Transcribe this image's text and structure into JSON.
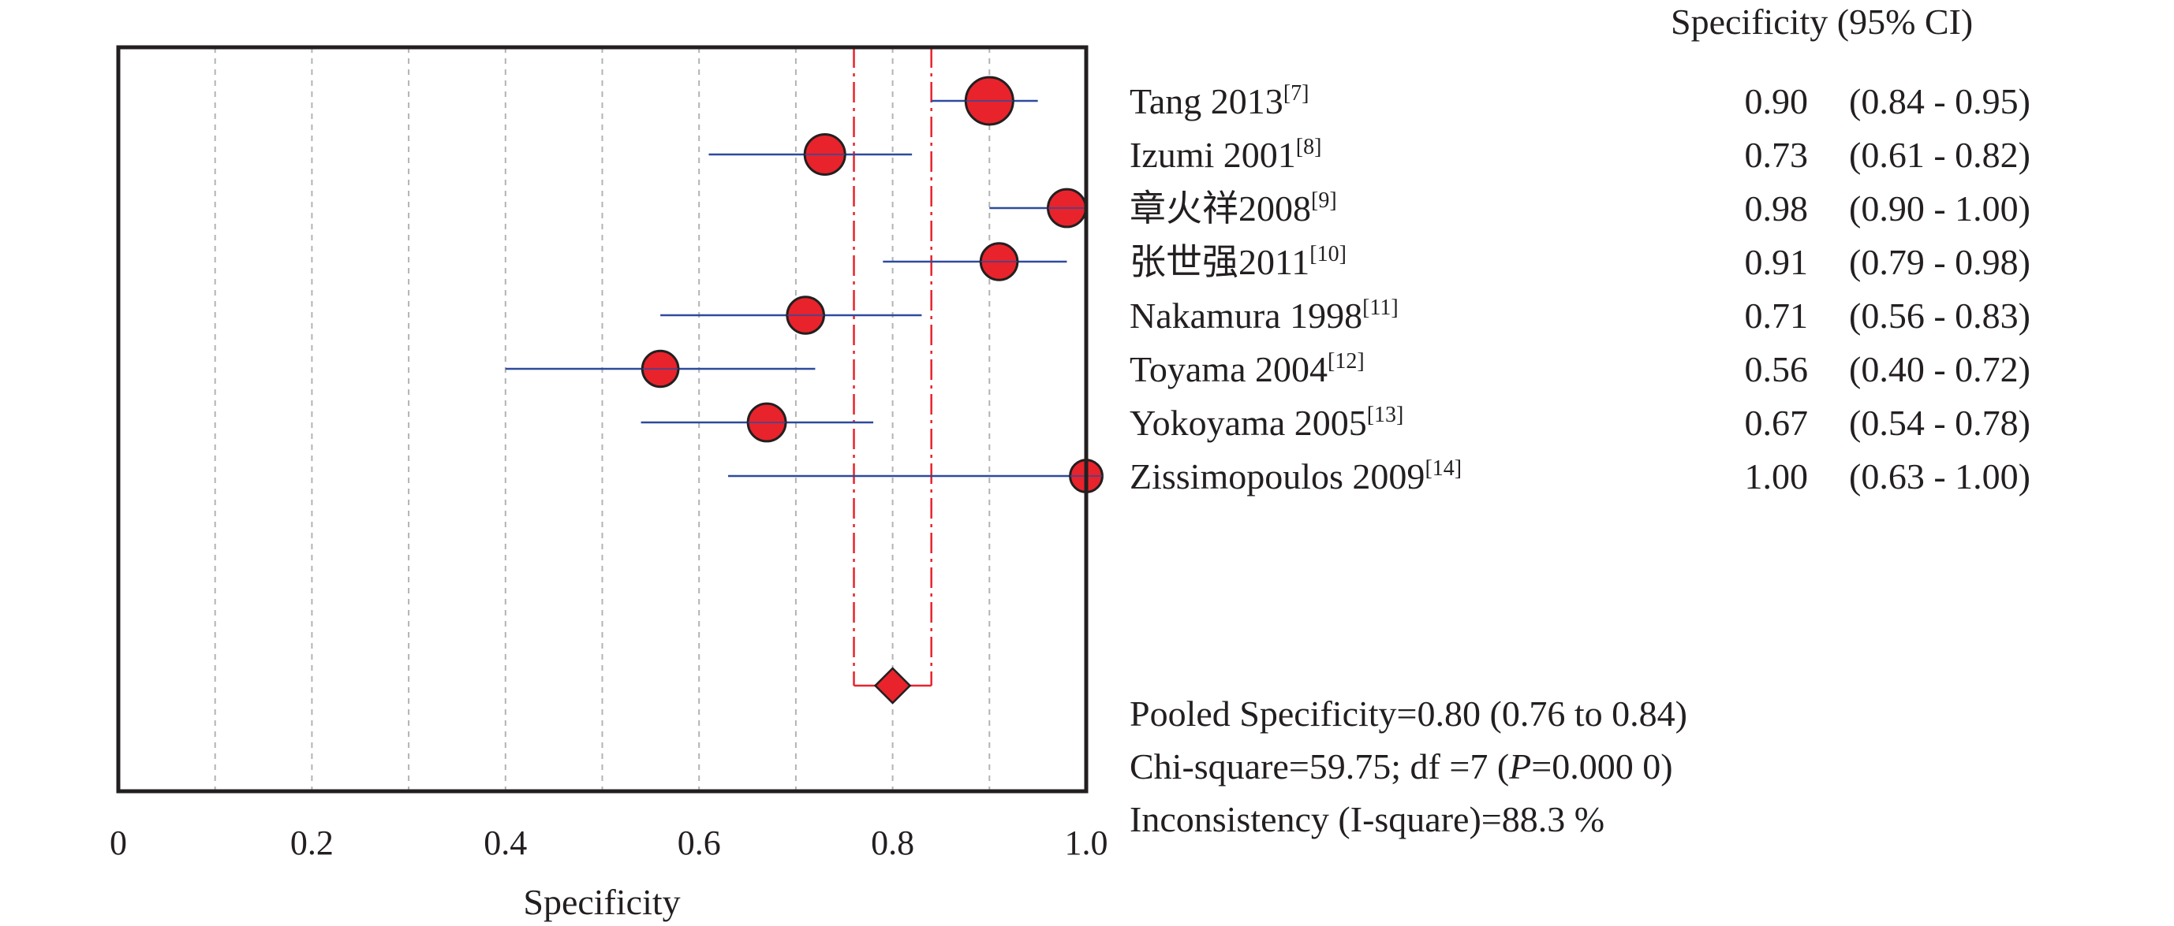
{
  "chart_data": {
    "type": "forest",
    "xlabel": "Specificity",
    "xlim": [
      0,
      1.0
    ],
    "x_ticks": [
      {
        "value": 0,
        "label": "0"
      },
      {
        "value": 0.2,
        "label": "0.2"
      },
      {
        "value": 0.4,
        "label": "0.4"
      },
      {
        "value": 0.6,
        "label": "0.6"
      },
      {
        "value": 0.8,
        "label": "0.8"
      },
      {
        "value": 1.0,
        "label": "1.0"
      }
    ],
    "gridlines": [
      0.1,
      0.2,
      0.3,
      0.4,
      0.5,
      0.6,
      0.7,
      0.8,
      0.9
    ],
    "column_header": "Specificity (95% CI)",
    "studies": [
      {
        "name": "Tang 2013",
        "ref": "[7]",
        "value": 0.9,
        "lower": 0.84,
        "upper": 0.95,
        "value_text": "0.90",
        "ci_text": "(0.84 - 0.95)",
        "weight": 1.0
      },
      {
        "name": "Izumi 2001",
        "ref": "[8]",
        "value": 0.73,
        "lower": 0.61,
        "upper": 0.82,
        "value_text": "0.73",
        "ci_text": "(0.61 - 0.82)",
        "weight": 0.72
      },
      {
        "name": "章火祥2008",
        "ref": "[9]",
        "value": 0.98,
        "lower": 0.9,
        "upper": 1.0,
        "value_text": "0.98",
        "ci_text": "(0.90 - 1.00)",
        "weight": 0.62
      },
      {
        "name": "张世强2011",
        "ref": "[10]",
        "value": 0.91,
        "lower": 0.79,
        "upper": 0.98,
        "value_text": "0.91",
        "ci_text": "(0.79 - 0.98)",
        "weight": 0.58
      },
      {
        "name": "Nakamura 1998",
        "ref": "[11]",
        "value": 0.71,
        "lower": 0.56,
        "upper": 0.83,
        "value_text": "0.71",
        "ci_text": "(0.56 - 0.83)",
        "weight": 0.58
      },
      {
        "name": "Toyama 2004",
        "ref": "[12]",
        "value": 0.56,
        "lower": 0.4,
        "upper": 0.72,
        "value_text": "0.56",
        "ci_text": "(0.40 - 0.72)",
        "weight": 0.55
      },
      {
        "name": "Yokoyama 2005",
        "ref": "[13]",
        "value": 0.67,
        "lower": 0.54,
        "upper": 0.78,
        "value_text": "0.67",
        "ci_text": "(0.54 - 0.78)",
        "weight": 0.62
      },
      {
        "name": "Zissimopoulos 2009",
        "ref": "[14]",
        "value": 1.0,
        "lower": 0.63,
        "upper": 1.0,
        "value_text": "1.00",
        "ci_text": "(0.63 - 1.00)",
        "weight": 0.4
      }
    ],
    "pooled": {
      "value": 0.8,
      "lower": 0.76,
      "upper": 0.84
    },
    "summary": {
      "pooled_text": "Pooled Specificity=0.80 (0.76 to 0.84)",
      "chi_prefix": "Chi-square=59.75; df =7 (",
      "chi_p": "P",
      "chi_suffix": "=0.000 0)",
      "inconsistency_text": "Inconsistency (I-square)=88.3 %"
    },
    "colors": {
      "marker_fill": "#e8232b",
      "marker_stroke": "#231f20",
      "ci_line": "#2e4a9e",
      "pooled_line": "#e8232b",
      "grid": "#b3b3b3",
      "frame": "#231f20"
    }
  }
}
